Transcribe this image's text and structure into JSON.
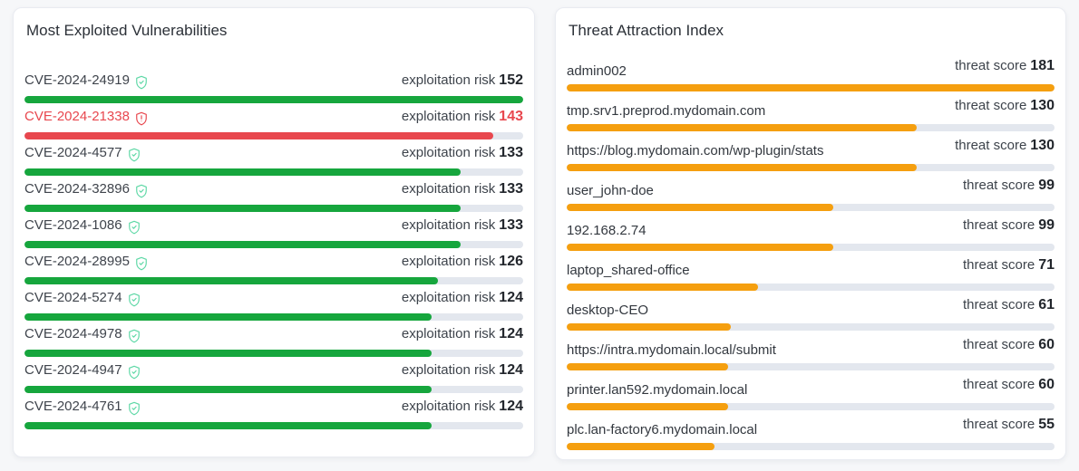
{
  "colors": {
    "page_background": "#f6f7f9",
    "card_background": "#ffffff",
    "card_border": "#e9ebf1",
    "bar_track": "#e3e7ee",
    "bar_green": "#16a63d",
    "bar_red": "#e8474e",
    "bar_orange": "#f59f0f",
    "shield_ok_icon": "#5ed8a6",
    "shield_alert_icon": "#e8474e",
    "alert_text": "#e8474e"
  },
  "panels": {
    "vulnerabilities": {
      "title": "Most Exploited Vulnerabilities",
      "metric_label": "exploitation risk",
      "items": [
        {
          "name": "CVE-2024-24919",
          "value": 152,
          "status": "safe"
        },
        {
          "name": "CVE-2024-21338",
          "value": 143,
          "status": "alert"
        },
        {
          "name": "CVE-2024-4577",
          "value": 133,
          "status": "safe"
        },
        {
          "name": "CVE-2024-32896",
          "value": 133,
          "status": "safe"
        },
        {
          "name": "CVE-2024-1086",
          "value": 133,
          "status": "safe"
        },
        {
          "name": "CVE-2024-28995",
          "value": 126,
          "status": "safe"
        },
        {
          "name": "CVE-2024-5274",
          "value": 124,
          "status": "safe"
        },
        {
          "name": "CVE-2024-4978",
          "value": 124,
          "status": "safe"
        },
        {
          "name": "CVE-2024-4947",
          "value": 124,
          "status": "safe"
        },
        {
          "name": "CVE-2024-4761",
          "value": 124,
          "status": "safe"
        }
      ]
    },
    "threat_index": {
      "title": "Threat Attraction Index",
      "metric_label": "threat score",
      "items": [
        {
          "name": "admin002",
          "value": 181
        },
        {
          "name": "tmp.srv1.preprod.mydomain.com",
          "value": 130
        },
        {
          "name": "https://blog.mydomain.com/wp-plugin/stats",
          "value": 130
        },
        {
          "name": "user_john-doe",
          "value": 99
        },
        {
          "name": "192.168.2.74",
          "value": 99
        },
        {
          "name": "laptop_shared-office",
          "value": 71
        },
        {
          "name": "desktop-CEO",
          "value": 61
        },
        {
          "name": "https://intra.mydomain.local/submit",
          "value": 60
        },
        {
          "name": "printer.lan592.mydomain.local",
          "value": 60
        },
        {
          "name": "plc.lan-factory6.mydomain.local",
          "value": 55
        }
      ]
    }
  },
  "chart_data": [
    {
      "type": "bar",
      "orientation": "horizontal",
      "title": "Most Exploited Vulnerabilities",
      "categories": [
        "CVE-2024-24919",
        "CVE-2024-21338",
        "CVE-2024-4577",
        "CVE-2024-32896",
        "CVE-2024-1086",
        "CVE-2024-28995",
        "CVE-2024-5274",
        "CVE-2024-4978",
        "CVE-2024-4947",
        "CVE-2024-4761"
      ],
      "values": [
        152,
        143,
        133,
        133,
        133,
        126,
        124,
        124,
        124,
        124
      ],
      "value_label": "exploitation risk",
      "xlim": [
        0,
        152
      ],
      "bar_color": "#16a63d",
      "highlighted_category": "CVE-2024-21338",
      "highlight_color": "#e8474e",
      "legend": "none",
      "grid": false
    },
    {
      "type": "bar",
      "orientation": "horizontal",
      "title": "Threat Attraction Index",
      "categories": [
        "admin002",
        "tmp.srv1.preprod.mydomain.com",
        "https://blog.mydomain.com/wp-plugin/stats",
        "user_john-doe",
        "192.168.2.74",
        "laptop_shared-office",
        "desktop-CEO",
        "https://intra.mydomain.local/submit",
        "printer.lan592.mydomain.local",
        "plc.lan-factory6.mydomain.local"
      ],
      "values": [
        181,
        130,
        130,
        99,
        99,
        71,
        61,
        60,
        60,
        55
      ],
      "value_label": "threat score",
      "xlim": [
        0,
        181
      ],
      "bar_color": "#f59f0f",
      "legend": "none",
      "grid": false
    }
  ]
}
